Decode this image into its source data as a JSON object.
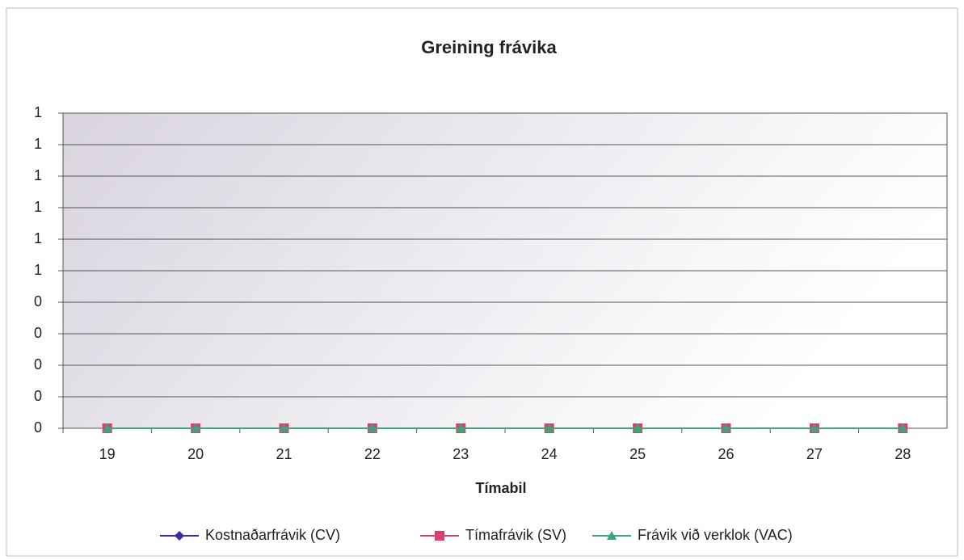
{
  "chart_data": {
    "type": "line",
    "title": "Greining frávika",
    "x_label": "Tímabil",
    "categories": [
      "19",
      "20",
      "21",
      "22",
      "23",
      "24",
      "25",
      "26",
      "27",
      "28"
    ],
    "series": [
      {
        "name": "Kostnaðarfrávik (CV)",
        "color": "#333399",
        "marker": "diamond",
        "values": [
          0,
          0,
          0,
          0,
          0,
          0,
          0,
          0,
          0,
          0
        ]
      },
      {
        "name": "Tímafrávik (SV)",
        "color": "#d9416a",
        "marker": "square",
        "values": [
          0,
          0,
          0,
          0,
          0,
          0,
          0,
          0,
          0,
          0
        ]
      },
      {
        "name": "Frávik við verklok (VAC)",
        "color": "#3aa67a",
        "marker": "triangle",
        "values": [
          0,
          0,
          0,
          0,
          0,
          0,
          0,
          0,
          0,
          0
        ]
      }
    ],
    "ylim": [
      0,
      1
    ],
    "yticks": [
      0,
      {
        "value": 0.1,
        "label": "0"
      },
      {
        "value": 0.2,
        "label": "0"
      },
      {
        "value": 0.3,
        "label": "0"
      },
      {
        "value": 0.4,
        "label": "0"
      },
      {
        "value": 0.5,
        "label": "1"
      },
      {
        "value": 0.6,
        "label": "1"
      },
      {
        "value": 0.7,
        "label": "1"
      },
      {
        "value": 0.8,
        "label": "1"
      },
      {
        "value": 0.9,
        "label": "1"
      },
      1
    ],
    "grid": true,
    "legend": "bottom"
  }
}
